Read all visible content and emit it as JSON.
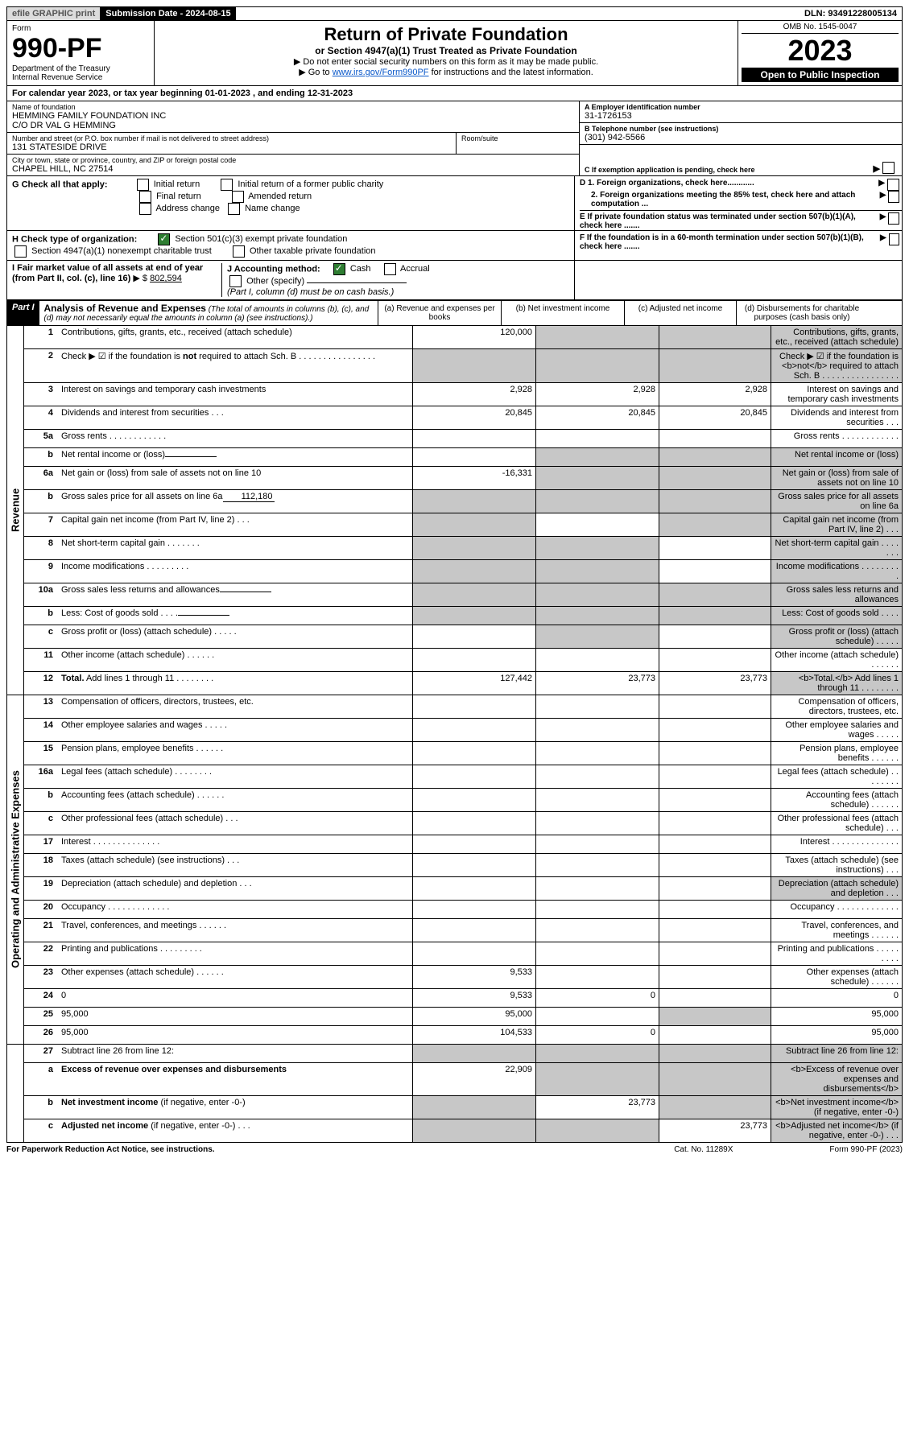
{
  "top": {
    "efile_label": "efile GRAPHIC print",
    "submission_label": "Submission Date - 2024-08-15",
    "dln": "DLN: 93491228005134"
  },
  "header": {
    "form_label": "Form",
    "form_number": "990-PF",
    "dept1": "Department of the Treasury",
    "dept2": "Internal Revenue Service",
    "title": "Return of Private Foundation",
    "subtitle": "or Section 4947(a)(1) Trust Treated as Private Foundation",
    "note1": "▶ Do not enter social security numbers on this form as it may be made public.",
    "note2_pre": "▶ Go to ",
    "note2_link": "www.irs.gov/Form990PF",
    "note2_post": " for instructions and the latest information.",
    "omb": "OMB No. 1545-0047",
    "year": "2023",
    "open_public": "Open to Public Inspection"
  },
  "cal_year": {
    "text_pre": "For calendar year 2023, or tax year beginning ",
    "begin": "01-01-2023",
    "mid": " , and ending ",
    "end": "12-31-2023"
  },
  "id": {
    "name_label": "Name of foundation",
    "name1": "HEMMING FAMILY FOUNDATION INC",
    "name2": "C/O DR VAL G HEMMING",
    "addr_label": "Number and street (or P.O. box number if mail is not delivered to street address)",
    "addr": "131 STATESIDE DRIVE",
    "room_label": "Room/suite",
    "room": "",
    "city_label": "City or town, state or province, country, and ZIP or foreign postal code",
    "city": "CHAPEL HILL, NC  27514",
    "ein_label": "A Employer identification number",
    "ein": "31-1726153",
    "phone_label": "B Telephone number (see instructions)",
    "phone": "(301) 942-5566",
    "c_label": "C If exemption application is pending, check here"
  },
  "g": {
    "label": "G Check all that apply:",
    "initial": "Initial return",
    "initial_former": "Initial return of a former public charity",
    "final": "Final return",
    "amended": "Amended return",
    "address_change": "Address change",
    "name_change": "Name change",
    "d1": "D 1. Foreign organizations, check here............",
    "d2": "2. Foreign organizations meeting the 85% test, check here and attach computation ...",
    "e": "E  If private foundation status was terminated under section 507(b)(1)(A), check here ......."
  },
  "h": {
    "label": "H Check type of organization:",
    "opt1": "Section 501(c)(3) exempt private foundation",
    "opt2": "Section 4947(a)(1) nonexempt charitable trust",
    "opt3": "Other taxable private foundation",
    "f": "F  If the foundation is in a 60-month termination under section 507(b)(1)(B), check here ......."
  },
  "i": {
    "label": "I Fair market value of all assets at end of year (from Part II, col. (c), line 16)",
    "value_pre": "▶ $",
    "value": "802,594",
    "j_label": "J Accounting method:",
    "cash": "Cash",
    "accrual": "Accrual",
    "other": "Other (specify)",
    "note": "(Part I, column (d) must be on cash basis.)"
  },
  "part1": {
    "label": "Part I",
    "title": "Analysis of Revenue and Expenses",
    "title_note": "(The total of amounts in columns (b), (c), and (d) may not necessarily equal the amounts in column (a) (see instructions).)",
    "col_a": "(a) Revenue and expenses per books",
    "col_b": "(b) Net investment income",
    "col_c": "(c) Adjusted net income",
    "col_d": "(d) Disbursements for charitable purposes (cash basis only)"
  },
  "sections": {
    "revenue": "Revenue",
    "expenses": "Operating and Administrative Expenses"
  },
  "lines": {
    "1": {
      "n": "1",
      "d": "Contributions, gifts, grants, etc., received (attach schedule)",
      "a": "120,000",
      "b_shade": true,
      "c_shade": true,
      "d_shade": true
    },
    "2": {
      "n": "2",
      "d": "Check ▶ ☑ if the foundation is <b>not</b> required to attach Sch. B   .  .  .  .  .  .  .  .  .  .  .  .  .  .  .  .",
      "all_shade": true
    },
    "3": {
      "n": "3",
      "d": "Interest on savings and temporary cash investments",
      "a": "2,928",
      "b": "2,928",
      "c": "2,928"
    },
    "4": {
      "n": "4",
      "d": "Dividends and interest from securities   .  .  .",
      "a": "20,845",
      "b": "20,845",
      "c": "20,845"
    },
    "5a": {
      "n": "5a",
      "d": "Gross rents   .  .  .  .  .  .  .  .  .  .  .  ."
    },
    "5b": {
      "n": "b",
      "d": "Net rental income or (loss)",
      "inline": "",
      "b_shade": true,
      "c_shade": true,
      "d_shade": true
    },
    "6a": {
      "n": "6a",
      "d": "Net gain or (loss) from sale of assets not on line 10",
      "a": "-16,331",
      "b_shade": true,
      "c_shade": true,
      "d_shade": true
    },
    "6b": {
      "n": "b",
      "d": "Gross sales price for all assets on line 6a",
      "inline": "112,180",
      "a_shade": true,
      "b_shade": true,
      "c_shade": true,
      "d_shade": true
    },
    "7": {
      "n": "7",
      "d": "Capital gain net income (from Part IV, line 2)   .  .  .",
      "a_shade": true,
      "c_shade": true,
      "d_shade": true
    },
    "8": {
      "n": "8",
      "d": "Net short-term capital gain   .  .  .  .  .  .  .",
      "a_shade": true,
      "b_shade": true,
      "d_shade": true
    },
    "9": {
      "n": "9",
      "d": "Income modifications   .  .  .  .  .  .  .  .  .",
      "a_shade": true,
      "b_shade": true,
      "d_shade": true
    },
    "10a": {
      "n": "10a",
      "d": "Gross sales less returns and allowances",
      "inline": "",
      "a_shade": true,
      "b_shade": true,
      "c_shade": true,
      "d_shade": true
    },
    "10b": {
      "n": "b",
      "d": "Less: Cost of goods sold   .  .  .  .",
      "inline": "",
      "a_shade": true,
      "b_shade": true,
      "c_shade": true,
      "d_shade": true
    },
    "10c": {
      "n": "c",
      "d": "Gross profit or (loss) (attach schedule)   .  .  .  .  .",
      "b_shade": true,
      "d_shade": true
    },
    "11": {
      "n": "11",
      "d": "Other income (attach schedule)   .  .  .  .  .  ."
    },
    "12": {
      "n": "12",
      "d": "<b>Total.</b> Add lines 1 through 11   .  .  .  .  .  .  .  .",
      "a": "127,442",
      "b": "23,773",
      "c": "23,773",
      "d_shade": true
    },
    "13": {
      "n": "13",
      "d": "Compensation of officers, directors, trustees, etc."
    },
    "14": {
      "n": "14",
      "d": "Other employee salaries and wages   .  .  .  .  ."
    },
    "15": {
      "n": "15",
      "d": "Pension plans, employee benefits   .  .  .  .  .  ."
    },
    "16a": {
      "n": "16a",
      "d": "Legal fees (attach schedule)   .  .  .  .  .  .  .  ."
    },
    "16b": {
      "n": "b",
      "d": "Accounting fees (attach schedule)   .  .  .  .  .  ."
    },
    "16c": {
      "n": "c",
      "d": "Other professional fees (attach schedule)   .  .  ."
    },
    "17": {
      "n": "17",
      "d": "Interest   .  .  .  .  .  .  .  .  .  .  .  .  .  ."
    },
    "18": {
      "n": "18",
      "d": "Taxes (attach schedule) (see instructions)   .  .  ."
    },
    "19": {
      "n": "19",
      "d": "Depreciation (attach schedule) and depletion   .  .  .",
      "d_shade": true
    },
    "20": {
      "n": "20",
      "d": "Occupancy   .  .  .  .  .  .  .  .  .  .  .  .  ."
    },
    "21": {
      "n": "21",
      "d": "Travel, conferences, and meetings   .  .  .  .  .  ."
    },
    "22": {
      "n": "22",
      "d": "Printing and publications   .  .  .  .  .  .  .  .  ."
    },
    "23": {
      "n": "23",
      "d": "Other expenses (attach schedule)   .  .  .  .  .  .",
      "a": "9,533"
    },
    "24": {
      "n": "24",
      "d": "0",
      "a": "9,533",
      "b": "0"
    },
    "25": {
      "n": "25",
      "d": "95,000",
      "a": "95,000",
      "c_shade": true
    },
    "26": {
      "n": "26",
      "d": "95,000",
      "a": "104,533",
      "b": "0"
    },
    "27": {
      "n": "27",
      "d": "Subtract line 26 from line 12:",
      "a_shade": true,
      "b_shade": true,
      "c_shade": true,
      "d_shade": true
    },
    "27a": {
      "n": "a",
      "d": "<b>Excess of revenue over expenses and disbursements</b>",
      "a": "22,909",
      "b_shade": true,
      "c_shade": true,
      "d_shade": true
    },
    "27b": {
      "n": "b",
      "d": "<b>Net investment income</b> (if negative, enter -0-)",
      "a_shade": true,
      "b": "23,773",
      "c_shade": true,
      "d_shade": true
    },
    "27c": {
      "n": "c",
      "d": "<b>Adjusted net income</b> (if negative, enter -0-)   .  .  .",
      "a_shade": true,
      "b_shade": true,
      "c": "23,773",
      "d_shade": true
    }
  },
  "footer": {
    "left": "For Paperwork Reduction Act Notice, see instructions.",
    "mid": "Cat. No. 11289X",
    "right": "Form 990-PF (2023)"
  }
}
